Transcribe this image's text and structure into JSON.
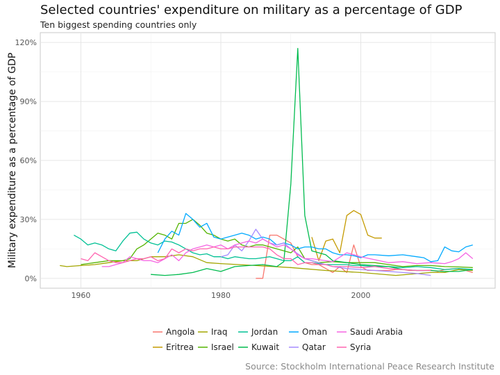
{
  "chart_data": {
    "type": "line",
    "title": "Selected countries' expenditure on military as a percentage of GDP",
    "subtitle": "Ten biggest spending countries only",
    "xlabel": "",
    "ylabel": "Military expenditure as a percentage of GDP",
    "caption": "Source: Stockholm International Peace Research Institute",
    "xlim": [
      1954.2,
      2019.2
    ],
    "ylim": [
      -0.05,
      1.25
    ],
    "x_ticks": [
      1960,
      1980,
      2000
    ],
    "x_tick_labels": [
      "1960",
      "1980",
      "2000"
    ],
    "y_ticks": [
      0,
      0.3,
      0.6,
      0.9,
      1.2
    ],
    "y_tick_labels": [
      "0%",
      "30%",
      "60%",
      "90%",
      "120%"
    ],
    "grid": true,
    "legend_position": "bottom",
    "series": [
      {
        "name": "Angola",
        "color": "#F8766D",
        "x": [
          1985,
          1986,
          1987,
          1988,
          1989,
          1990,
          1991,
          1992,
          1993,
          1994,
          1995,
          1996,
          1997,
          1998,
          1999,
          2000,
          2001,
          2002,
          2003,
          2004,
          2005,
          2006,
          2007,
          2008,
          2009,
          2010,
          2011,
          2012,
          2013,
          2014,
          2015,
          2016
        ],
        "y": [
          0.0,
          0.0,
          0.22,
          0.22,
          0.2,
          0.18,
          0.11,
          0.08,
          0.07,
          0.07,
          0.05,
          0.03,
          0.06,
          0.03,
          0.17,
          0.06,
          0.04,
          0.04,
          0.04,
          0.04,
          0.045,
          0.045,
          0.04,
          0.04,
          0.04,
          0.042,
          0.035,
          0.045,
          0.048,
          0.05,
          0.04,
          0.03
        ]
      },
      {
        "name": "Eritrea",
        "color": "#C49A00",
        "x": [
          1993,
          1994,
          1995,
          1996,
          1997,
          1998,
          1999,
          2000,
          2001,
          2002,
          2003
        ],
        "y": [
          0.21,
          0.09,
          0.19,
          0.2,
          0.13,
          0.32,
          0.345,
          0.325,
          0.22,
          0.205,
          0.205
        ]
      },
      {
        "name": "Iraq",
        "color": "#A3A500",
        "x": [
          1957,
          1958,
          1960,
          1962,
          1964,
          1966,
          1968,
          1970,
          1972,
          1974,
          1976,
          1978,
          1980,
          1985,
          1990,
          1995,
          2000,
          2005,
          2010,
          2012,
          2014,
          2016
        ],
        "y": [
          0.065,
          0.06,
          0.065,
          0.07,
          0.08,
          0.09,
          0.09,
          0.11,
          0.11,
          0.12,
          0.11,
          0.08,
          0.075,
          0.065,
          0.055,
          0.04,
          0.03,
          0.015,
          0.03,
          0.03,
          0.045,
          0.04
        ]
      },
      {
        "name": "Israel",
        "color": "#53B400",
        "x": [
          1960,
          1962,
          1964,
          1966,
          1967,
          1968,
          1969,
          1970,
          1971,
          1972,
          1973,
          1974,
          1975,
          1976,
          1977,
          1978,
          1979,
          1980,
          1981,
          1982,
          1983,
          1984,
          1985,
          1986,
          1988,
          1990,
          1991,
          1992,
          1994,
          1996,
          1998,
          2000,
          2002,
          2004,
          2006,
          2008,
          2010,
          2012,
          2014,
          2016
        ],
        "y": [
          0.07,
          0.08,
          0.09,
          0.09,
          0.1,
          0.15,
          0.17,
          0.2,
          0.23,
          0.22,
          0.2,
          0.28,
          0.28,
          0.3,
          0.27,
          0.23,
          0.22,
          0.2,
          0.19,
          0.2,
          0.17,
          0.16,
          0.17,
          0.17,
          0.15,
          0.13,
          0.16,
          0.1,
          0.08,
          0.085,
          0.08,
          0.08,
          0.08,
          0.07,
          0.06,
          0.065,
          0.065,
          0.06,
          0.058,
          0.055
        ]
      },
      {
        "name": "Jordan",
        "color": "#00C094",
        "x": [
          1959,
          1960,
          1961,
          1962,
          1963,
          1964,
          1965,
          1966,
          1967,
          1968,
          1969,
          1970,
          1971,
          1972,
          1973,
          1974,
          1975,
          1976,
          1977,
          1978,
          1979,
          1980,
          1981,
          1982,
          1983,
          1984,
          1985,
          1986,
          1987,
          1988,
          1989,
          1990,
          1991,
          1992,
          1993,
          1994,
          1995,
          1996,
          1997,
          1998,
          1999,
          2000,
          2002,
          2004,
          2006,
          2008,
          2010,
          2012,
          2014,
          2016
        ],
        "y": [
          0.22,
          0.2,
          0.17,
          0.18,
          0.17,
          0.15,
          0.14,
          0.19,
          0.23,
          0.235,
          0.2,
          0.18,
          0.17,
          0.19,
          0.185,
          0.17,
          0.15,
          0.13,
          0.12,
          0.125,
          0.11,
          0.11,
          0.1,
          0.11,
          0.105,
          0.1,
          0.1,
          0.105,
          0.11,
          0.1,
          0.09,
          0.09,
          0.11,
          0.08,
          0.08,
          0.075,
          0.07,
          0.07,
          0.07,
          0.07,
          0.065,
          0.065,
          0.06,
          0.06,
          0.055,
          0.06,
          0.055,
          0.045,
          0.05,
          0.045
        ]
      },
      {
        "name": "Kuwait",
        "color": "#00BB4E",
        "x": [
          1970,
          1972,
          1974,
          1976,
          1978,
          1980,
          1982,
          1984,
          1986,
          1988,
          1989,
          1990,
          1991,
          1992,
          1993,
          1994,
          1995,
          1996,
          1998,
          2000,
          2002,
          2004,
          2006,
          2008,
          2010,
          2012,
          2014,
          2016
        ],
        "y": [
          0.02,
          0.015,
          0.02,
          0.03,
          0.05,
          0.035,
          0.06,
          0.065,
          0.07,
          0.06,
          0.085,
          0.48,
          1.17,
          0.32,
          0.14,
          0.13,
          0.12,
          0.09,
          0.08,
          0.07,
          0.065,
          0.06,
          0.045,
          0.04,
          0.04,
          0.035,
          0.035,
          0.045
        ]
      },
      {
        "name": "Oman",
        "color": "#00A9FF",
        "x": [
          1971,
          1972,
          1973,
          1974,
          1975,
          1976,
          1977,
          1978,
          1979,
          1980,
          1981,
          1982,
          1983,
          1984,
          1985,
          1986,
          1987,
          1988,
          1989,
          1990,
          1991,
          1992,
          1993,
          1994,
          1995,
          1996,
          1997,
          1998,
          1999,
          2000,
          2001,
          2002,
          2004,
          2006,
          2008,
          2009,
          2010,
          2011,
          2012,
          2013,
          2014,
          2015,
          2016
        ],
        "y": [
          0.13,
          0.2,
          0.24,
          0.22,
          0.33,
          0.3,
          0.26,
          0.28,
          0.21,
          0.2,
          0.21,
          0.22,
          0.23,
          0.22,
          0.2,
          0.21,
          0.2,
          0.17,
          0.18,
          0.17,
          0.15,
          0.16,
          0.16,
          0.15,
          0.15,
          0.13,
          0.12,
          0.12,
          0.115,
          0.105,
          0.12,
          0.12,
          0.115,
          0.12,
          0.11,
          0.105,
          0.085,
          0.09,
          0.16,
          0.14,
          0.135,
          0.16,
          0.17
        ]
      },
      {
        "name": "Qatar",
        "color": "#A58AFF",
        "x": [
          1980,
          1981,
          1982,
          1983,
          1984,
          1985,
          1986,
          1987,
          1988,
          1989,
          1990,
          1992,
          1994,
          1996,
          1998,
          2000,
          2002,
          2004,
          2006,
          2008,
          2010
        ],
        "y": [
          0.11,
          0.12,
          0.17,
          0.14,
          0.19,
          0.25,
          0.2,
          0.18,
          0.17,
          0.18,
          0.15,
          0.1,
          0.08,
          0.06,
          0.05,
          0.045,
          0.04,
          0.035,
          0.03,
          0.025,
          0.015
        ]
      },
      {
        "name": "Saudi Arabia",
        "color": "#F564E3",
        "x": [
          1963,
          1964,
          1965,
          1966,
          1967,
          1968,
          1969,
          1970,
          1971,
          1972,
          1973,
          1974,
          1975,
          1976,
          1977,
          1978,
          1979,
          1980,
          1981,
          1982,
          1983,
          1984,
          1985,
          1986,
          1987,
          1988,
          1989,
          1990,
          1991,
          1992,
          1993,
          1994,
          1995,
          1996,
          1998,
          2000,
          2002,
          2004,
          2006,
          2008,
          2010,
          2012,
          2013,
          2014,
          2015,
          2016
        ],
        "y": [
          0.06,
          0.06,
          0.07,
          0.08,
          0.11,
          0.1,
          0.09,
          0.09,
          0.08,
          0.1,
          0.12,
          0.09,
          0.13,
          0.15,
          0.16,
          0.17,
          0.16,
          0.17,
          0.15,
          0.17,
          0.18,
          0.19,
          0.18,
          0.2,
          0.18,
          0.16,
          0.17,
          0.15,
          0.12,
          0.1,
          0.1,
          0.095,
          0.09,
          0.085,
          0.13,
          0.11,
          0.095,
          0.08,
          0.085,
          0.075,
          0.08,
          0.075,
          0.085,
          0.1,
          0.13,
          0.1
        ]
      },
      {
        "name": "Syria",
        "color": "#FF64B0",
        "x": [
          1960,
          1961,
          1962,
          1963,
          1964,
          1965,
          1966,
          1967,
          1968,
          1969,
          1970,
          1971,
          1972,
          1973,
          1974,
          1975,
          1976,
          1977,
          1978,
          1979,
          1980,
          1981,
          1982,
          1983,
          1984,
          1985,
          1986,
          1987,
          1988,
          1989,
          1990,
          1991,
          1992,
          1993,
          1994,
          1995,
          1996,
          1997,
          1998,
          2000,
          2002,
          2004,
          2006,
          2008,
          2010
        ],
        "y": [
          0.1,
          0.09,
          0.13,
          0.11,
          0.09,
          0.08,
          0.08,
          0.09,
          0.1,
          0.1,
          0.11,
          0.09,
          0.1,
          0.15,
          0.13,
          0.15,
          0.14,
          0.15,
          0.15,
          0.16,
          0.15,
          0.15,
          0.16,
          0.16,
          0.16,
          0.16,
          0.16,
          0.15,
          0.12,
          0.1,
          0.1,
          0.07,
          0.08,
          0.08,
          0.07,
          0.07,
          0.06,
          0.06,
          0.06,
          0.055,
          0.06,
          0.05,
          0.045,
          0.04,
          0.04
        ]
      }
    ],
    "legend_layout": [
      [
        "Angola",
        "Iraq",
        "Jordan",
        "Oman",
        "Saudi Arabia"
      ],
      [
        "Eritrea",
        "Israel",
        "Kuwait",
        "Qatar",
        "Syria"
      ]
    ]
  }
}
